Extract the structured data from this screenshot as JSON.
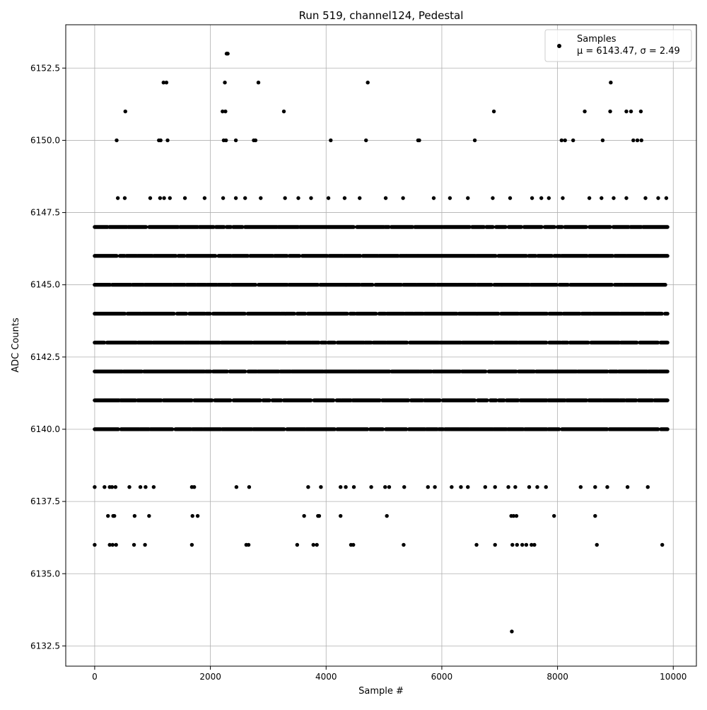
{
  "chart_data": {
    "type": "scatter",
    "title": "Run 519, channel124, Pedestal",
    "xlabel": "Sample #",
    "ylabel": "ADC Counts",
    "xlim": [
      -500,
      10400
    ],
    "ylim": [
      6131.8,
      6154.0
    ],
    "xticks": [
      0,
      2000,
      4000,
      6000,
      8000,
      10000
    ],
    "xtick_labels": [
      "0",
      "2000",
      "4000",
      "6000",
      "8000",
      "10000"
    ],
    "yticks": [
      6132.5,
      6135.0,
      6137.5,
      6140.0,
      6142.5,
      6145.0,
      6147.5,
      6150.0,
      6152.5
    ],
    "ytick_labels": [
      "6132.5",
      "6135.0",
      "6137.5",
      "6140.0",
      "6142.5",
      "6145.0",
      "6147.5",
      "6150.0",
      "6152.5"
    ],
    "grid": true,
    "legend_position": "top-right",
    "marker_color": "#000000",
    "series": [
      {
        "name": "Samples",
        "stats_label": "μ = 6143.47, σ = 2.49",
        "mean": 6143.47,
        "sigma": 2.49,
        "x_range": [
          0,
          9900
        ],
        "dense_levels": [
          6140,
          6141,
          6142,
          6143,
          6144,
          6145,
          6146,
          6147
        ],
        "sparse_points": [
          [
            2280,
            6153
          ],
          [
            2300,
            6153
          ],
          [
            1190,
            6152
          ],
          [
            1240,
            6152
          ],
          [
            2250,
            6152
          ],
          [
            2830,
            6152
          ],
          [
            4720,
            6152
          ],
          [
            8920,
            6152
          ],
          [
            530,
            6151
          ],
          [
            2210,
            6151
          ],
          [
            2260,
            6151
          ],
          [
            3270,
            6151
          ],
          [
            6900,
            6151
          ],
          [
            8470,
            6151
          ],
          [
            8910,
            6151
          ],
          [
            9190,
            6151
          ],
          [
            9270,
            6151
          ],
          [
            9440,
            6151
          ],
          [
            380,
            6150
          ],
          [
            1110,
            6150
          ],
          [
            1140,
            6150
          ],
          [
            1260,
            6150
          ],
          [
            2230,
            6150
          ],
          [
            2270,
            6150
          ],
          [
            2440,
            6150
          ],
          [
            2750,
            6150
          ],
          [
            2780,
            6150
          ],
          [
            4080,
            6150
          ],
          [
            4690,
            6150
          ],
          [
            5590,
            6150
          ],
          [
            5610,
            6150
          ],
          [
            6570,
            6150
          ],
          [
            8070,
            6150
          ],
          [
            8130,
            6150
          ],
          [
            8270,
            6150
          ],
          [
            8780,
            6150
          ],
          [
            9310,
            6150
          ],
          [
            9380,
            6150
          ],
          [
            9450,
            6150
          ],
          [
            400,
            6148
          ],
          [
            520,
            6148
          ],
          [
            960,
            6148
          ],
          [
            1130,
            6148
          ],
          [
            1200,
            6148
          ],
          [
            1300,
            6148
          ],
          [
            1560,
            6148
          ],
          [
            1900,
            6148
          ],
          [
            2220,
            6148
          ],
          [
            2440,
            6148
          ],
          [
            2600,
            6148
          ],
          [
            2870,
            6148
          ],
          [
            3290,
            6148
          ],
          [
            3520,
            6148
          ],
          [
            3740,
            6148
          ],
          [
            4040,
            6148
          ],
          [
            4320,
            6148
          ],
          [
            4580,
            6148
          ],
          [
            5030,
            6148
          ],
          [
            5330,
            6148
          ],
          [
            5860,
            6148
          ],
          [
            6140,
            6148
          ],
          [
            6450,
            6148
          ],
          [
            6880,
            6148
          ],
          [
            7180,
            6148
          ],
          [
            7560,
            6148
          ],
          [
            7720,
            6148
          ],
          [
            7850,
            6148
          ],
          [
            8090,
            6148
          ],
          [
            8550,
            6148
          ],
          [
            8760,
            6148
          ],
          [
            8970,
            6148
          ],
          [
            9190,
            6148
          ],
          [
            9520,
            6148
          ],
          [
            9740,
            6148
          ],
          [
            9880,
            6148
          ],
          [
            0,
            6138
          ],
          [
            170,
            6138
          ],
          [
            260,
            6138
          ],
          [
            300,
            6138
          ],
          [
            360,
            6138
          ],
          [
            600,
            6138
          ],
          [
            790,
            6138
          ],
          [
            880,
            6138
          ],
          [
            1020,
            6138
          ],
          [
            1680,
            6138
          ],
          [
            1720,
            6138
          ],
          [
            2450,
            6138
          ],
          [
            2670,
            6138
          ],
          [
            3690,
            6138
          ],
          [
            3910,
            6138
          ],
          [
            4250,
            6138
          ],
          [
            4340,
            6138
          ],
          [
            4480,
            6138
          ],
          [
            4780,
            6138
          ],
          [
            5020,
            6138
          ],
          [
            5090,
            6138
          ],
          [
            5350,
            6138
          ],
          [
            5760,
            6138
          ],
          [
            5880,
            6138
          ],
          [
            6170,
            6138
          ],
          [
            6330,
            6138
          ],
          [
            6450,
            6138
          ],
          [
            6750,
            6138
          ],
          [
            6920,
            6138
          ],
          [
            7150,
            6138
          ],
          [
            7270,
            6138
          ],
          [
            7510,
            6138
          ],
          [
            7650,
            6138
          ],
          [
            7800,
            6138
          ],
          [
            8400,
            6138
          ],
          [
            8650,
            6138
          ],
          [
            8860,
            6138
          ],
          [
            9210,
            6138
          ],
          [
            9560,
            6138
          ],
          [
            230,
            6137
          ],
          [
            320,
            6137
          ],
          [
            340,
            6137
          ],
          [
            690,
            6137
          ],
          [
            940,
            6137
          ],
          [
            1690,
            6137
          ],
          [
            1780,
            6137
          ],
          [
            3620,
            6137
          ],
          [
            3860,
            6137
          ],
          [
            3880,
            6137
          ],
          [
            4250,
            6137
          ],
          [
            5050,
            6137
          ],
          [
            7200,
            6137
          ],
          [
            7240,
            6137
          ],
          [
            7290,
            6137
          ],
          [
            7940,
            6137
          ],
          [
            8650,
            6137
          ],
          [
            0,
            6136
          ],
          [
            260,
            6136
          ],
          [
            310,
            6136
          ],
          [
            370,
            6136
          ],
          [
            680,
            6136
          ],
          [
            870,
            6136
          ],
          [
            1680,
            6136
          ],
          [
            2620,
            6136
          ],
          [
            2660,
            6136
          ],
          [
            3500,
            6136
          ],
          [
            3780,
            6136
          ],
          [
            3840,
            6136
          ],
          [
            4430,
            6136
          ],
          [
            4470,
            6136
          ],
          [
            5340,
            6136
          ],
          [
            6600,
            6136
          ],
          [
            6920,
            6136
          ],
          [
            7220,
            6136
          ],
          [
            7300,
            6136
          ],
          [
            7390,
            6136
          ],
          [
            7460,
            6136
          ],
          [
            7550,
            6136
          ],
          [
            7600,
            6136
          ],
          [
            8680,
            6136
          ],
          [
            9810,
            6136
          ],
          [
            7210,
            6133
          ]
        ]
      }
    ]
  }
}
